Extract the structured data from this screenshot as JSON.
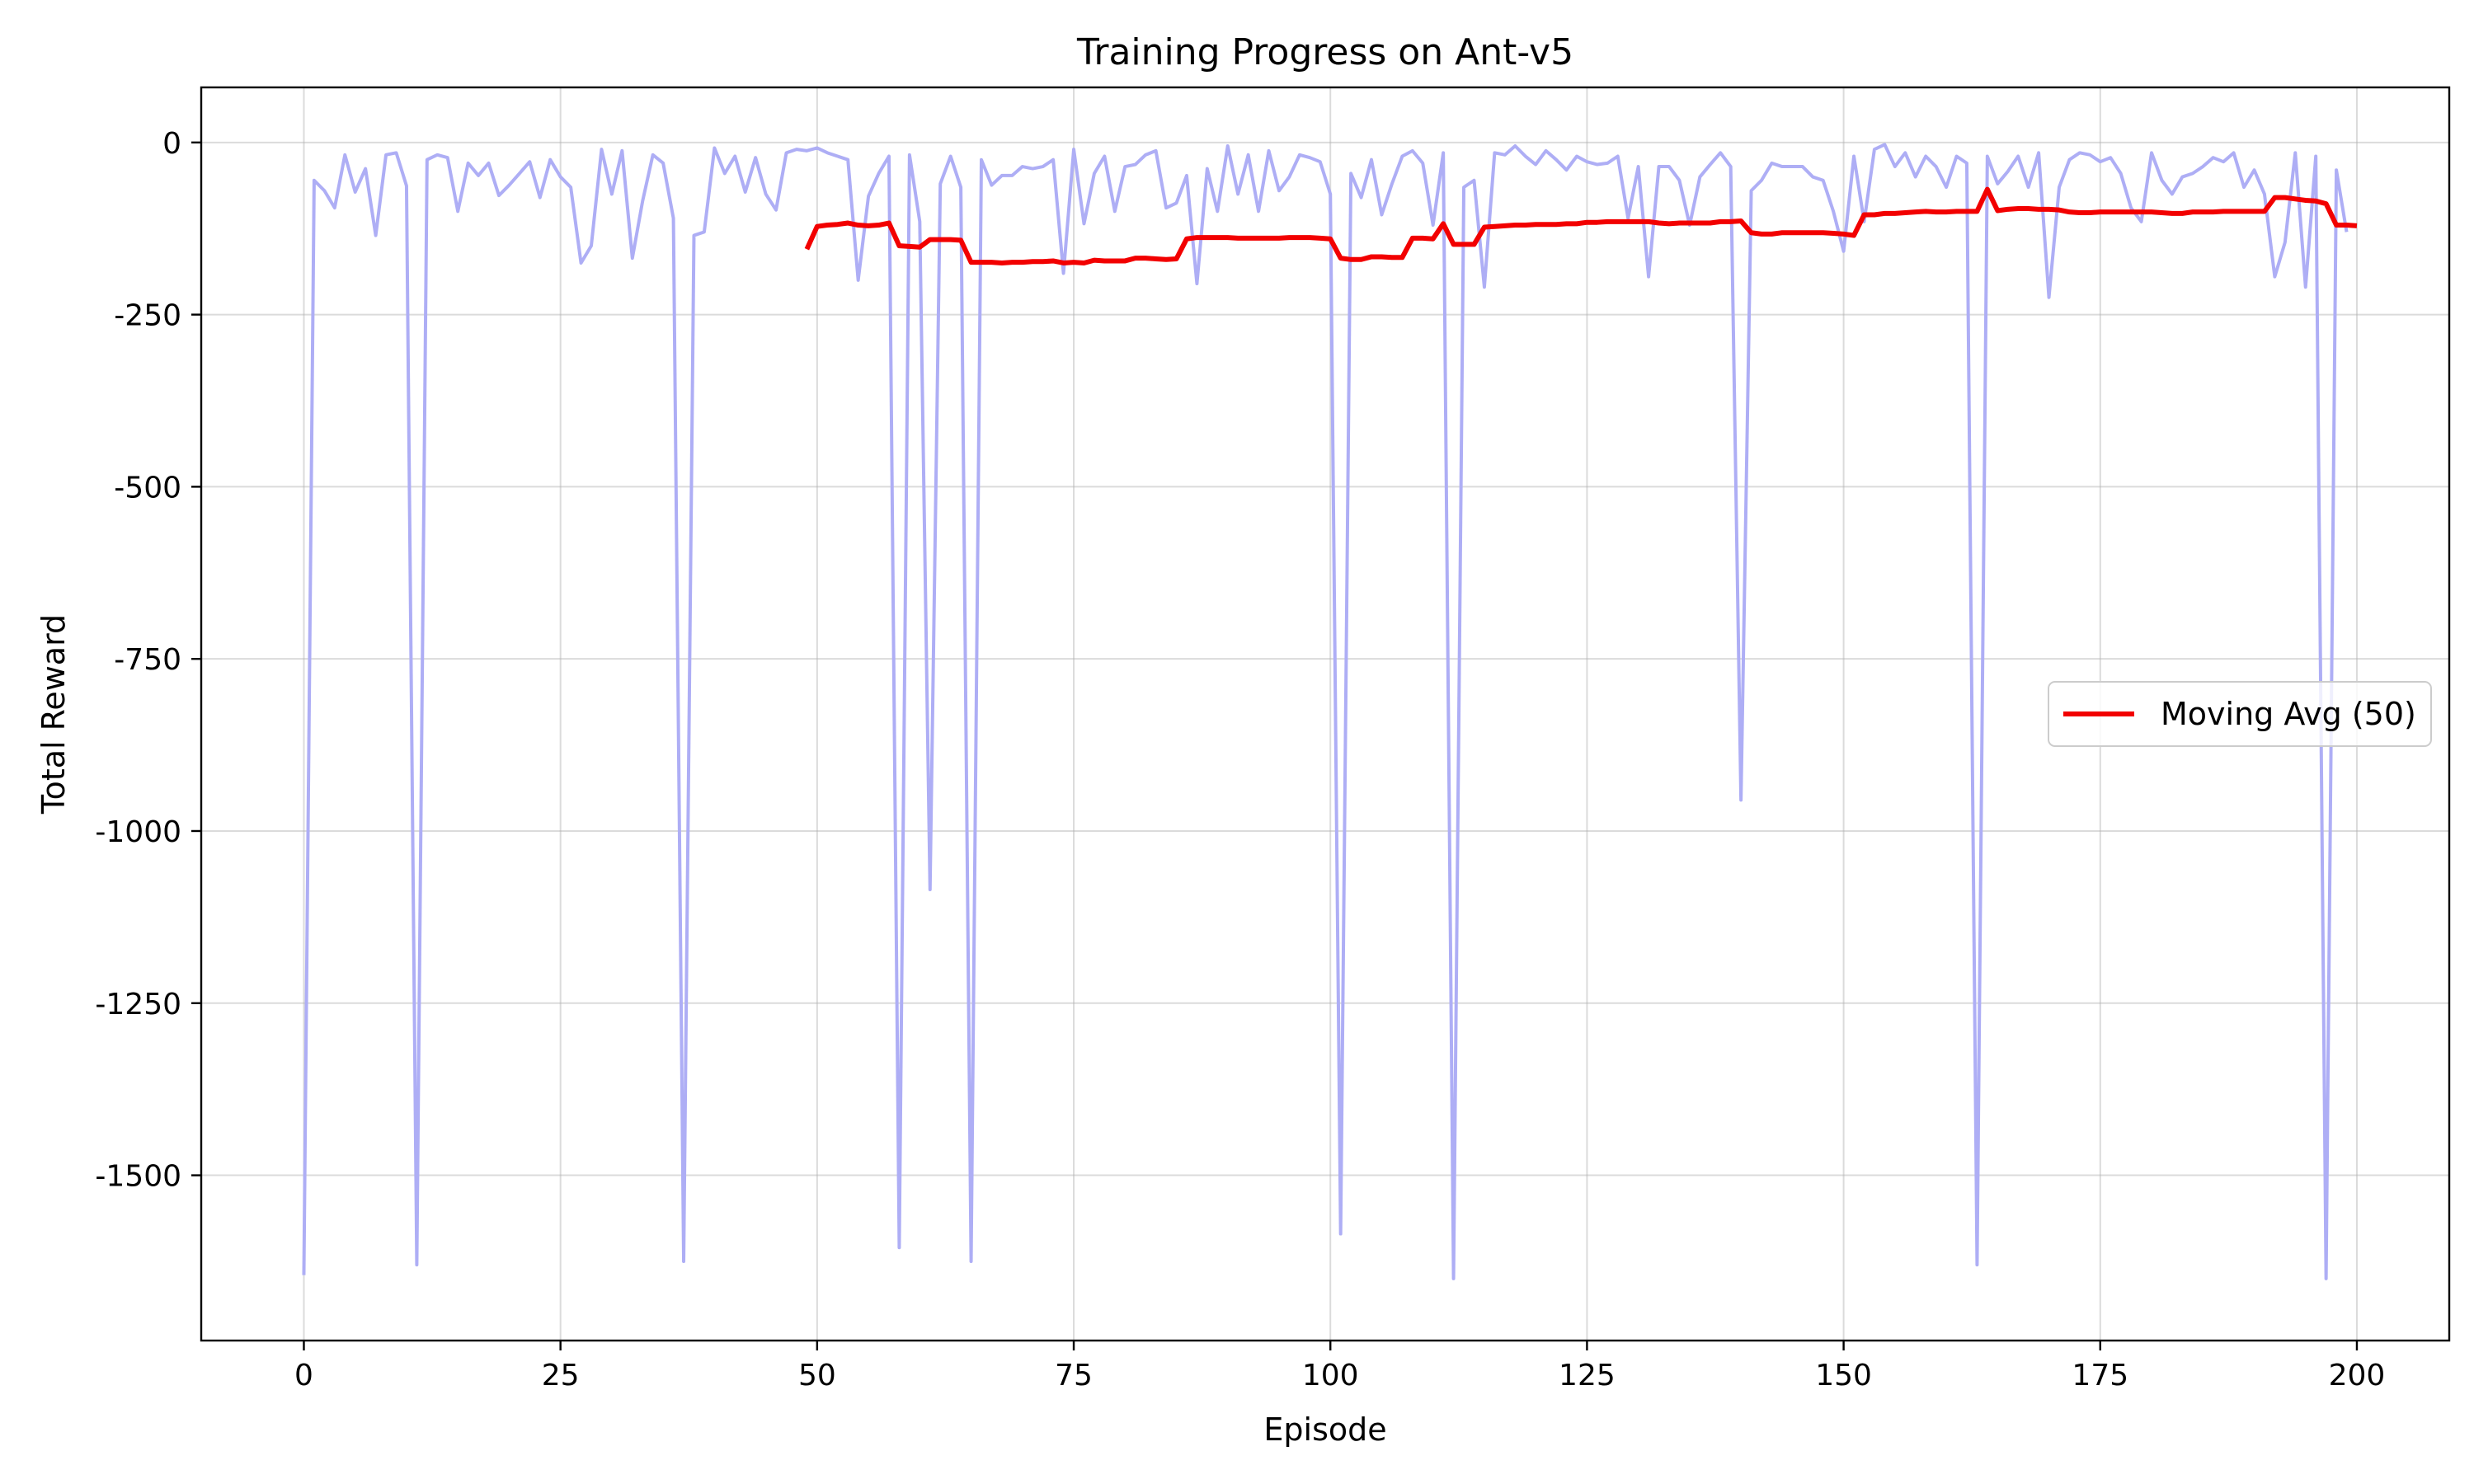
{
  "chart_data": {
    "type": "line",
    "title": "Training Progress on Ant-v5",
    "xlabel": "Episode",
    "ylabel": "Total Reward",
    "xlim": [
      -10,
      209
    ],
    "ylim": [
      -1740,
      80
    ],
    "xticks": [
      0,
      25,
      50,
      75,
      100,
      125,
      150,
      175,
      200
    ],
    "yticks": [
      0,
      -250,
      -500,
      -750,
      -1000,
      -1250,
      -1500
    ],
    "grid": true,
    "legend_position": "center-right",
    "series": [
      {
        "color": "#aeaef5",
        "x_start": 0,
        "values": [
          -1645,
          -55,
          -70,
          -95,
          -18,
          -72,
          -38,
          -135,
          -18,
          -15,
          -63,
          -1630,
          -25,
          -18,
          -22,
          -100,
          -30,
          -48,
          -30,
          -77,
          -62,
          -45,
          -28,
          -80,
          -25,
          -50,
          -65,
          -175,
          -150,
          -10,
          -75,
          -12,
          -168,
          -85,
          -18,
          -30,
          -110,
          -1625,
          -135,
          -130,
          -8,
          -45,
          -20,
          -72,
          -22,
          -75,
          -98,
          -15,
          -10,
          -12,
          -8,
          -15,
          -20,
          -25,
          -200,
          -78,
          -45,
          -20,
          -1605,
          -18,
          -115,
          -1085,
          -60,
          -20,
          -65,
          -1625,
          -25,
          -62,
          -48,
          -48,
          -35,
          -38,
          -35,
          -25,
          -190,
          -10,
          -118,
          -45,
          -20,
          -100,
          -35,
          -32,
          -18,
          -12,
          -95,
          -88,
          -48,
          -205,
          -38,
          -100,
          -5,
          -75,
          -18,
          -100,
          -12,
          -70,
          -50,
          -18,
          -22,
          -28,
          -75,
          -1585,
          -45,
          -80,
          -25,
          -105,
          -60,
          -20,
          -12,
          -30,
          -120,
          -15,
          -1650,
          -65,
          -55,
          -210,
          -15,
          -18,
          -5,
          -20,
          -32,
          -12,
          -25,
          -40,
          -20,
          -28,
          -32,
          -30,
          -20,
          -110,
          -35,
          -195,
          -35,
          -35,
          -55,
          -120,
          -50,
          -32,
          -15,
          -35,
          -955,
          -70,
          -55,
          -30,
          -35,
          -35,
          -35,
          -50,
          -55,
          -100,
          -158,
          -20,
          -115,
          -10,
          -3,
          -35,
          -15,
          -50,
          -20,
          -35,
          -65,
          -20,
          -30,
          -1630,
          -20,
          -60,
          -42,
          -20,
          -65,
          -15,
          -225,
          -65,
          -25,
          -15,
          -18,
          -28,
          -22,
          -45,
          -95,
          -115,
          -15,
          -55,
          -75,
          -50,
          -45,
          -35,
          -22,
          -28,
          -15,
          -65,
          -40,
          -75,
          -195,
          -145,
          -15,
          -210,
          -20,
          -1650,
          -40,
          -130
        ]
      },
      {
        "name": "Moving Avg (50)",
        "color": "#f20000",
        "x_start": 49,
        "values": [
          -155,
          -122,
          -120,
          -119,
          -117,
          -120,
          -121,
          -120,
          -117,
          -150,
          -151,
          -152,
          -141,
          -141,
          -141,
          -142,
          -174,
          -174,
          -174,
          -175,
          -174,
          -174,
          -173,
          -173,
          -172,
          -175,
          -174,
          -175,
          -171,
          -172,
          -172,
          -172,
          -168,
          -168,
          -169,
          -170,
          -169,
          -140,
          -138,
          -138,
          -138,
          -138,
          -139,
          -139,
          -139,
          -139,
          -139,
          -138,
          -138,
          -138,
          -139,
          -140,
          -168,
          -170,
          -170,
          -166,
          -166,
          -167,
          -167,
          -139,
          -139,
          -140,
          -118,
          -148,
          -148,
          -148,
          -123,
          -122,
          -121,
          -120,
          -120,
          -119,
          -119,
          -119,
          -118,
          -118,
          -116,
          -116,
          -115,
          -115,
          -115,
          -115,
          -115,
          -117,
          -118,
          -117,
          -117,
          -117,
          -117,
          -115,
          -115,
          -114,
          -131,
          -133,
          -133,
          -131,
          -131,
          -131,
          -131,
          -131,
          -132,
          -133,
          -135,
          -105,
          -105,
          -103,
          -103,
          -102,
          -101,
          -100,
          -101,
          -101,
          -100,
          -100,
          -100,
          -68,
          -99,
          -97,
          -96,
          -96,
          -97,
          -97,
          -98,
          -101,
          -102,
          -102,
          -101,
          -101,
          -101,
          -101,
          -101,
          -101,
          -102,
          -103,
          -103,
          -101,
          -101,
          -101,
          -100,
          -100,
          -100,
          -100,
          -100,
          -80,
          -80,
          -82,
          -84,
          -85,
          -89,
          -120,
          -120,
          -121
        ]
      }
    ]
  }
}
